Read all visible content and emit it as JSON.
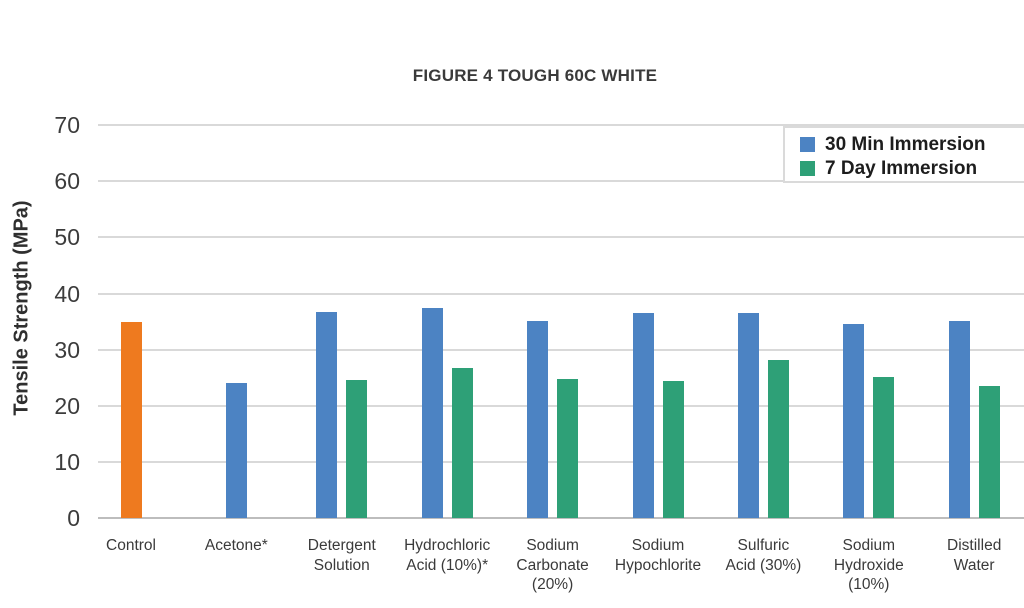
{
  "chart_data": {
    "type": "bar",
    "title": "FIGURE 4 TOUGH 60C WHITE",
    "xlabel": "",
    "ylabel": "Tensile Strength (MPa)",
    "ylim": [
      0,
      70
    ],
    "yticks": [
      0,
      10,
      20,
      30,
      40,
      50,
      60,
      70
    ],
    "grid": true,
    "legend_position": "top-right",
    "categories": [
      "Control",
      "Acetone*",
      "Detergent\nSolution",
      "Hydrochloric\nAcid (10%)*",
      "Sodium\nCarbonate\n(20%)",
      "Sodium\nHypochlorite",
      "Sulfuric\nAcid (30%)",
      "Sodium\nHydroxide\n(10%)",
      "Distilled\nWater"
    ],
    "series": [
      {
        "name": "30 Min Immersion",
        "color": "#4c83c3",
        "values": [
          35.0,
          24.1,
          36.7,
          37.4,
          35.2,
          36.5,
          36.5,
          34.6,
          35.2
        ]
      },
      {
        "name": "7 Day Immersion",
        "color": "#2ea077",
        "values": [
          null,
          null,
          24.7,
          26.8,
          24.8,
          24.4,
          28.2,
          25.2,
          23.6
        ]
      }
    ],
    "color_overrides": [
      {
        "series": 0,
        "index": 0,
        "color": "#ee7a1f"
      }
    ],
    "colors": {
      "gridline": "#d9d9d9",
      "axis_line": "#bdbdbd",
      "text": "#3a3a3a"
    }
  }
}
